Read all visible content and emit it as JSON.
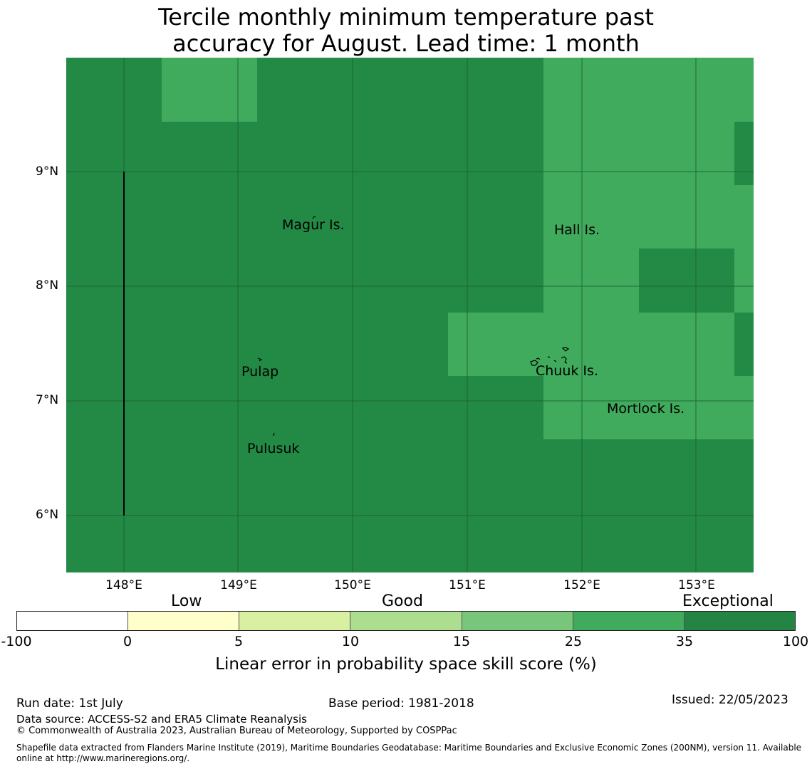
{
  "title_line1": "Tercile monthly minimum temperature past",
  "title_line2": "accuracy for August. Lead time: 1 month",
  "map": {
    "lon_range": [
      147.5,
      153.5
    ],
    "lat_range": [
      5.5,
      10.0
    ],
    "x_ticks": [
      "148°E",
      "149°E",
      "150°E",
      "151°E",
      "152°E",
      "153°E"
    ],
    "y_ticks": [
      "9°N",
      "8°N",
      "7°N",
      "6°N"
    ],
    "gridlines": true,
    "base_color": "#238a45",
    "light_color": "#41ab5d",
    "places": [
      {
        "name": "Magur Is.",
        "lon": 149.7,
        "lat": 8.55
      },
      {
        "name": "Hall Is.",
        "lon": 151.97,
        "lat": 8.5
      },
      {
        "name": "Pulap",
        "lon": 149.2,
        "lat": 7.25
      },
      {
        "name": "Chuuk Is.",
        "lon": 151.85,
        "lat": 7.26
      },
      {
        "name": "Mortlock Is.",
        "lon": 152.58,
        "lat": 6.93
      },
      {
        "name": "Pulusuk",
        "lon": 149.33,
        "lat": 6.6
      }
    ]
  },
  "colorbar": {
    "categories": [
      "Low",
      "Good",
      "Exceptional"
    ],
    "ticks": [
      "-100",
      "0",
      "5",
      "10",
      "15",
      "25",
      "35",
      "100"
    ],
    "colors": [
      "#ffffff",
      "#ffffcc",
      "#d9f0a3",
      "#addd8e",
      "#78c679",
      "#41ab5d",
      "#238443"
    ],
    "label": "Linear error in probability space skill score (%)"
  },
  "footer": {
    "run_date": "Run date: 1st July",
    "base_period": "Base period: 1981-2018",
    "issued": "Issued: 22/05/2023",
    "data_source": "Data source: ACCESS-S2 and ERA5 Climate Reanalysis",
    "copyright": "© Commonwealth of Australia 2023, Australian Bureau of Meteorology, Supported by COSPPac",
    "shapefile_line1": "Shapefile data extracted from Flanders Marine Institute (2019), Maritime Boundaries Geodatabase: Maritime Boundaries and Exclusive Economic Zones (200NM), version 11. Available",
    "shapefile_line2": "online at http://www.marineregions.org/."
  }
}
